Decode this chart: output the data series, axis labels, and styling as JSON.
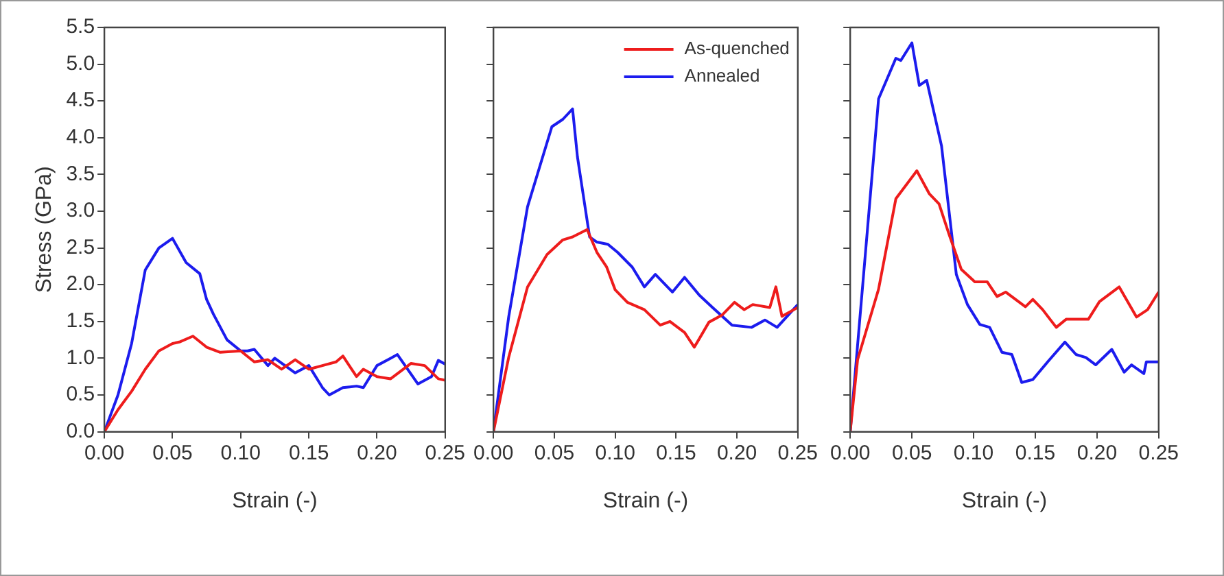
{
  "chart_data": [
    {
      "type": "line",
      "xlabel": "Strain (-)",
      "ylabel": "Stress (GPa)",
      "xlim": [
        0,
        0.25
      ],
      "ylim": [
        0,
        5.5
      ],
      "xticks": [
        {
          "value": 0,
          "label": "0.00"
        },
        {
          "value": 0.05,
          "label": "0.05"
        },
        {
          "value": 0.1,
          "label": "0.10"
        },
        {
          "value": 0.15,
          "label": "0.15"
        },
        {
          "value": 0.2,
          "label": "0.20"
        },
        {
          "value": 0.25,
          "label": "0.25"
        }
      ],
      "yticks": [
        {
          "value": 0,
          "label": "0.0"
        },
        {
          "value": 0.5,
          "label": "0.5"
        },
        {
          "value": 1,
          "label": "1.0"
        },
        {
          "value": 1.5,
          "label": "1.5"
        },
        {
          "value": 2,
          "label": "2.0"
        },
        {
          "value": 2.5,
          "label": "2.5"
        },
        {
          "value": 3,
          "label": "3.0"
        },
        {
          "value": 3.5,
          "label": "3.5"
        },
        {
          "value": 4,
          "label": "4.0"
        },
        {
          "value": 4.5,
          "label": "4.5"
        },
        {
          "value": 5,
          "label": "5.0"
        },
        {
          "value": 5.5,
          "label": "5.5"
        }
      ],
      "grid": false,
      "legend": false,
      "series": [
        {
          "color": "#ee1c1c",
          "x": [
            0,
            0.01,
            0.02,
            0.03,
            0.04,
            0.05,
            0.055,
            0.065,
            0.075,
            0.085,
            0.1,
            0.11,
            0.12,
            0.13,
            0.14,
            0.15,
            0.16,
            0.17,
            0.175,
            0.185,
            0.19,
            0.2,
            0.21,
            0.225,
            0.235,
            0.245,
            0.25
          ],
          "values": [
            0,
            0.3,
            0.55,
            0.85,
            1.1,
            1.2,
            1.22,
            1.3,
            1.15,
            1.08,
            1.1,
            0.95,
            0.98,
            0.85,
            0.98,
            0.85,
            0.9,
            0.95,
            1.03,
            0.75,
            0.85,
            0.75,
            0.72,
            0.93,
            0.9,
            0.72,
            0.7
          ]
        },
        {
          "color": "#1c1cee",
          "x": [
            0,
            0.01,
            0.02,
            0.03,
            0.04,
            0.05,
            0.06,
            0.07,
            0.075,
            0.08,
            0.09,
            0.1,
            0.105,
            0.11,
            0.12,
            0.125,
            0.14,
            0.15,
            0.16,
            0.165,
            0.175,
            0.185,
            0.19,
            0.2,
            0.21,
            0.215,
            0.23,
            0.24,
            0.245,
            0.25
          ],
          "values": [
            0,
            0.5,
            1.2,
            2.2,
            2.5,
            2.63,
            2.3,
            2.15,
            1.8,
            1.6,
            1.25,
            1.1,
            1.1,
            1.12,
            0.9,
            1,
            0.8,
            0.9,
            0.6,
            0.5,
            0.6,
            0.62,
            0.6,
            0.9,
            1,
            1.05,
            0.65,
            0.75,
            0.97,
            0.92
          ]
        }
      ]
    },
    {
      "type": "line",
      "xlabel": "Strain (-)",
      "xlim": [
        0,
        0.25
      ],
      "ylim": [
        0,
        5.5
      ],
      "xticks": [
        {
          "value": 0,
          "label": "0.00"
        },
        {
          "value": 0.05,
          "label": "0.05"
        },
        {
          "value": 0.1,
          "label": "0.10"
        },
        {
          "value": 0.15,
          "label": "0.15"
        },
        {
          "value": 0.2,
          "label": "0.20"
        },
        {
          "value": 0.25,
          "label": "0.25"
        }
      ],
      "yticks": [
        {
          "value": 0,
          "label": null
        },
        {
          "value": 0.5,
          "label": null
        },
        {
          "value": 1,
          "label": null
        },
        {
          "value": 1.5,
          "label": null
        },
        {
          "value": 2,
          "label": null
        },
        {
          "value": 2.5,
          "label": null
        },
        {
          "value": 3,
          "label": null
        },
        {
          "value": 3.5,
          "label": null
        },
        {
          "value": 4,
          "label": null
        },
        {
          "value": 4.5,
          "label": null
        },
        {
          "value": 5,
          "label": null
        },
        {
          "value": 5.5,
          "label": null
        }
      ],
      "tick_labels": "x",
      "grid": false,
      "legend": "top right",
      "series": [
        {
          "name": "As-quenched",
          "color": "#ee1c1c",
          "x": [
            0,
            0.0125,
            0.028,
            0.044,
            0.057,
            0.065,
            0.077,
            0.085,
            0.093,
            0.1,
            0.11,
            0.124,
            0.137,
            0.145,
            0.157,
            0.165,
            0.177,
            0.188,
            0.198,
            0.206,
            0.213,
            0.227,
            0.232,
            0.237,
            0.25
          ],
          "values": [
            0,
            1.01,
            1.97,
            2.41,
            2.61,
            2.65,
            2.75,
            2.44,
            2.24,
            1.93,
            1.76,
            1.66,
            1.45,
            1.5,
            1.35,
            1.15,
            1.49,
            1.59,
            1.76,
            1.66,
            1.73,
            1.69,
            1.97,
            1.57,
            1.69
          ]
        },
        {
          "name": "Annealed",
          "color": "#1c1cee",
          "x": [
            0,
            0.0125,
            0.028,
            0.048,
            0.057,
            0.065,
            0.069,
            0.079,
            0.085,
            0.094,
            0.102,
            0.114,
            0.124,
            0.133,
            0.147,
            0.157,
            0.169,
            0.18,
            0.196,
            0.212,
            0.223,
            0.233,
            0.25
          ],
          "values": [
            0,
            1.56,
            3.06,
            4.15,
            4.25,
            4.39,
            3.74,
            2.65,
            2.58,
            2.55,
            2.44,
            2.24,
            1.97,
            2.14,
            1.9,
            2.1,
            1.86,
            1.69,
            1.45,
            1.42,
            1.52,
            1.42,
            1.73
          ]
        }
      ]
    },
    {
      "type": "line",
      "xlabel": "Strain (-)",
      "xlim": [
        0,
        0.25
      ],
      "ylim": [
        0,
        5.5
      ],
      "xticks": [
        {
          "value": 0,
          "label": "0.00"
        },
        {
          "value": 0.05,
          "label": "0.05"
        },
        {
          "value": 0.1,
          "label": "0.10"
        },
        {
          "value": 0.15,
          "label": "0.15"
        },
        {
          "value": 0.2,
          "label": "0.20"
        },
        {
          "value": 0.25,
          "label": "0.25"
        }
      ],
      "yticks": [
        {
          "value": 0,
          "label": null
        },
        {
          "value": 0.5,
          "label": null
        },
        {
          "value": 1,
          "label": null
        },
        {
          "value": 1.5,
          "label": null
        },
        {
          "value": 2,
          "label": null
        },
        {
          "value": 2.5,
          "label": null
        },
        {
          "value": 3,
          "label": null
        },
        {
          "value": 3.5,
          "label": null
        },
        {
          "value": 4,
          "label": null
        },
        {
          "value": 4.5,
          "label": null
        },
        {
          "value": 5,
          "label": null
        },
        {
          "value": 5.5,
          "label": null
        }
      ],
      "tick_labels": "x",
      "grid": false,
      "legend": false,
      "series": [
        {
          "color": "#ee1c1c",
          "x": [
            0,
            0.006,
            0.023,
            0.037,
            0.054,
            0.064,
            0.072,
            0.08,
            0.09,
            0.101,
            0.111,
            0.119,
            0.126,
            0.142,
            0.148,
            0.156,
            0.167,
            0.175,
            0.193,
            0.202,
            0.218,
            0.232,
            0.241,
            0.25
          ],
          "values": [
            0,
            0.98,
            1.94,
            3.17,
            3.55,
            3.24,
            3.1,
            2.69,
            2.21,
            2.04,
            2.04,
            1.84,
            1.9,
            1.7,
            1.8,
            1.66,
            1.42,
            1.53,
            1.53,
            1.77,
            1.97,
            1.56,
            1.66,
            1.9
          ]
        },
        {
          "color": "#1c1cee",
          "x": [
            0,
            0.023,
            0.037,
            0.041,
            0.05,
            0.056,
            0.062,
            0.074,
            0.086,
            0.095,
            0.105,
            0.113,
            0.123,
            0.131,
            0.139,
            0.148,
            0.16,
            0.174,
            0.183,
            0.191,
            0.199,
            0.212,
            0.222,
            0.228,
            0.238,
            0.24,
            0.25
          ],
          "values": [
            0,
            4.53,
            5.08,
            5.05,
            5.29,
            4.71,
            4.78,
            3.89,
            2.14,
            1.73,
            1.46,
            1.42,
            1.08,
            1.05,
            0.67,
            0.71,
            0.95,
            1.22,
            1.05,
            1.01,
            0.91,
            1.12,
            0.81,
            0.91,
            0.79,
            0.95,
            0.95
          ]
        }
      ]
    }
  ]
}
